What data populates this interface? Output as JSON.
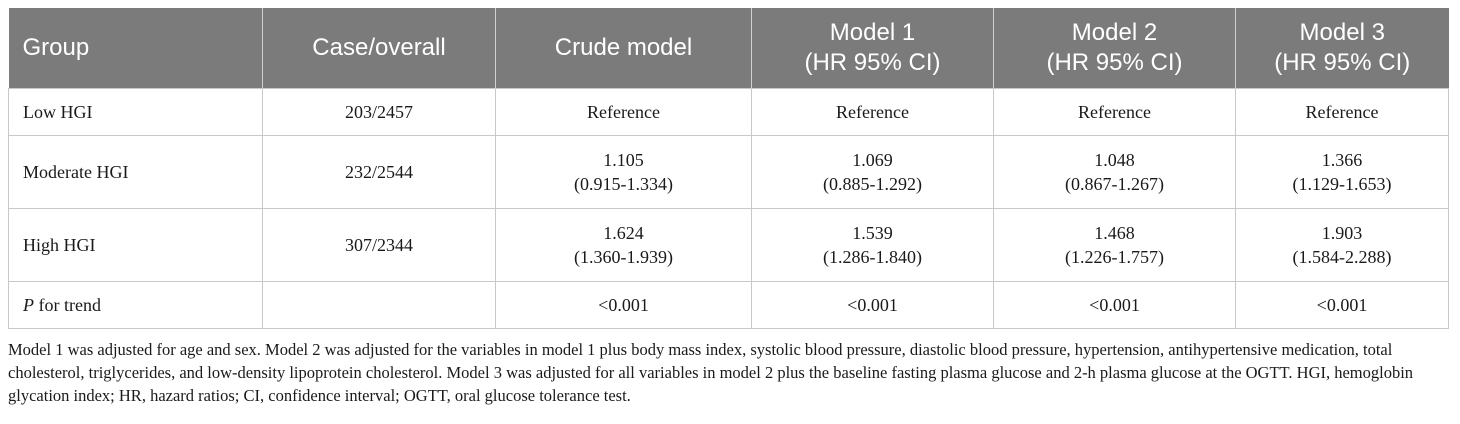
{
  "table": {
    "headers": [
      {
        "line1": "Group",
        "line2": ""
      },
      {
        "line1": "Case/overall",
        "line2": ""
      },
      {
        "line1": "Crude model",
        "line2": ""
      },
      {
        "line1": "Model 1",
        "line2": "(HR 95% CI)"
      },
      {
        "line1": "Model 2",
        "line2": "(HR 95% CI)"
      },
      {
        "line1": "Model 3",
        "line2": "(HR 95% CI)"
      }
    ],
    "rows": [
      {
        "group": "Low HGI",
        "case": "203/2457",
        "crude": {
          "hr": "Reference",
          "ci": ""
        },
        "model1": {
          "hr": "Reference",
          "ci": ""
        },
        "model2": {
          "hr": "Reference",
          "ci": ""
        },
        "model3": {
          "hr": "Reference",
          "ci": ""
        }
      },
      {
        "group": "Moderate HGI",
        "case": "232/2544",
        "crude": {
          "hr": "1.105",
          "ci": "(0.915-1.334)"
        },
        "model1": {
          "hr": "1.069",
          "ci": "(0.885-1.292)"
        },
        "model2": {
          "hr": "1.048",
          "ci": "(0.867-1.267)"
        },
        "model3": {
          "hr": "1.366",
          "ci": "(1.129-1.653)"
        }
      },
      {
        "group": "High HGI",
        "case": "307/2344",
        "crude": {
          "hr": "1.624",
          "ci": "(1.360-1.939)"
        },
        "model1": {
          "hr": "1.539",
          "ci": "(1.286-1.840)"
        },
        "model2": {
          "hr": "1.468",
          "ci": "(1.226-1.757)"
        },
        "model3": {
          "hr": "1.903",
          "ci": "(1.584-2.288)"
        }
      }
    ],
    "trend_row": {
      "label_italic": "P",
      "label_rest": " for trend",
      "case": "",
      "crude": "<0.001",
      "model1": "<0.001",
      "model2": "<0.001",
      "model3": "<0.001"
    }
  },
  "footnote": "Model 1 was adjusted for age and sex. Model 2 was adjusted for the variables in model 1 plus body mass index, systolic blood pressure, diastolic blood pressure, hypertension, antihypertensive medication, total cholesterol, triglycerides, and low-density lipoprotein cholesterol. Model 3 was adjusted for all variables in model 2 plus the baseline fasting plasma glucose and 2-h plasma glucose at the OGTT. HGI, hemoglobin glycation index; HR, hazard ratios; CI, confidence interval; OGTT, oral glucose tolerance test."
}
